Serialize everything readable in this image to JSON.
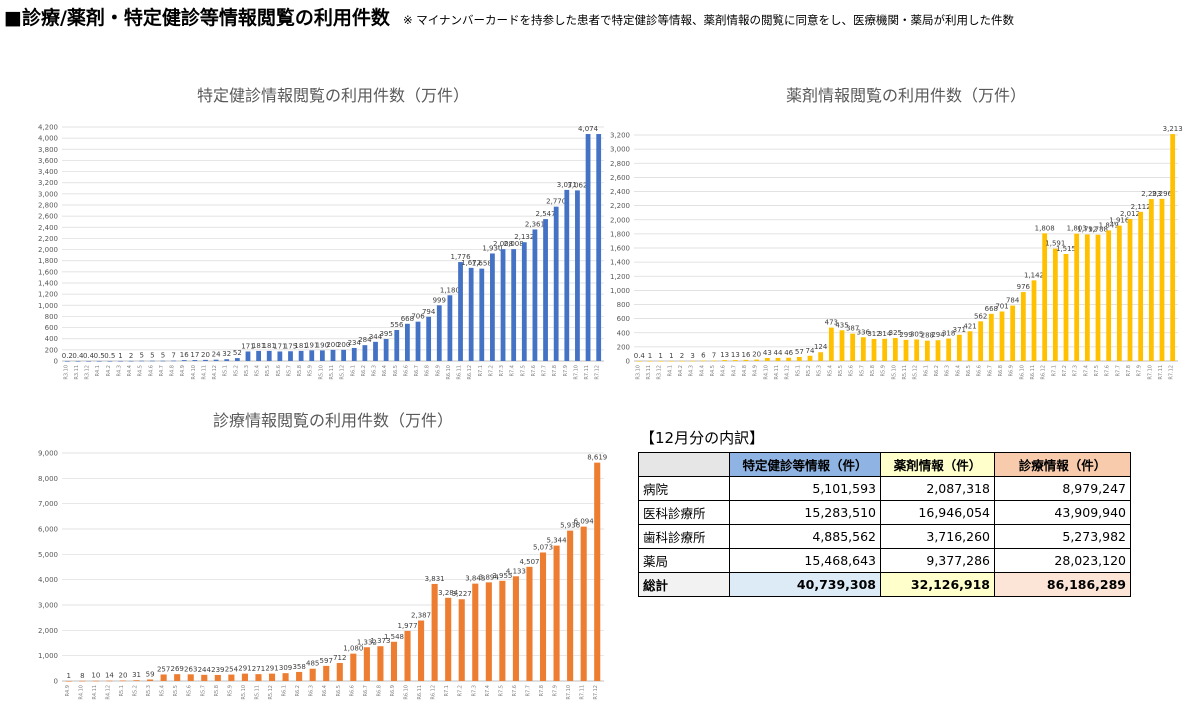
{
  "header": {
    "title": "■診療/薬剤・特定健診等情報閲覧の利用件数",
    "note": "※ マイナンバーカードを持参した患者で特定健診等情報、薬剤情報の閲覧に同意をし、医療機関・薬局が利用した件数"
  },
  "colors": {
    "kenshin": "#4472c4",
    "yakuzai": "#ffc000",
    "shinryo": "#ed7d31"
  },
  "chart_data": [
    {
      "type": "bar",
      "title": "特定健診情報閲覧の利用件数（万件）",
      "ylim": [
        0,
        4200
      ],
      "ytick_step": 200,
      "grid": true,
      "categories": [
        "R3.10",
        "R3.11",
        "R3.12",
        "R4.1",
        "R4.2",
        "R4.3",
        "R4.4",
        "R4.5",
        "R4.6",
        "R4.7",
        "R4.8",
        "R4.9",
        "R4.10",
        "R4.11",
        "R4.12",
        "R5.1",
        "R5.2",
        "R5.3",
        "R5.4",
        "R5.5",
        "R5.6",
        "R5.7",
        "R5.8",
        "R5.9",
        "R5.10",
        "R5.11",
        "R5.12",
        "R6.1",
        "R6.2",
        "R6.3",
        "R6.4",
        "R6.5",
        "R6.6",
        "R6.7",
        "R6.8",
        "R6.9",
        "R6.10",
        "R6.11",
        "R6.12",
        "R7.1",
        "R7.2",
        "R7.3",
        "R7.4",
        "R7.5",
        "R7.6",
        "R7.7",
        "R7.8",
        "R7.9",
        "R7.10",
        "R7.11",
        "R7.12"
      ],
      "values": [
        0.2,
        0.4,
        0.4,
        0.5,
        0.5,
        1,
        2,
        5,
        5,
        5,
        7,
        16,
        17,
        20,
        24,
        32,
        52,
        171,
        181,
        181,
        171,
        175,
        181,
        191,
        190,
        200,
        200,
        234,
        284,
        344,
        395,
        556,
        668,
        706,
        794,
        999,
        1180,
        1776,
        1672,
        1658,
        1930,
        2008,
        2008,
        2132,
        2361,
        2547,
        2770,
        3071,
        3062,
        4074,
        4074
      ],
      "labels": [
        "0.2",
        "0.4",
        "0.4",
        "0.5",
        "0.5",
        "1",
        "2",
        "5",
        "5",
        "5",
        "7",
        "16",
        "17",
        "20",
        "24",
        "32",
        "52",
        "171",
        "181",
        "181",
        "171",
        "175",
        "181",
        "191",
        "190",
        "200",
        "200",
        "234",
        "284",
        "344",
        "395",
        "556",
        "668",
        "706",
        "794",
        "999",
        "1,180",
        "1,776",
        "1,672",
        "1,658",
        "1,930",
        "2,008",
        "2,008",
        "2,132",
        "2,361",
        "2,547",
        "2,770",
        "3,071",
        "3,062",
        "4,074",
        ""
      ]
    },
    {
      "type": "bar",
      "title": "薬剤情報閲覧の利用件数（万件）",
      "ylim": [
        0,
        3200
      ],
      "ytick_step": 200,
      "grid": true,
      "categories": [
        "R3.10",
        "R3.11",
        "R3.12",
        "R4.1",
        "R4.2",
        "R4.3",
        "R4.4",
        "R4.5",
        "R4.6",
        "R4.7",
        "R4.8",
        "R4.9",
        "R4.10",
        "R4.11",
        "R4.12",
        "R5.1",
        "R5.2",
        "R5.3",
        "R5.4",
        "R5.5",
        "R5.6",
        "R5.7",
        "R5.8",
        "R5.9",
        "R5.10",
        "R5.11",
        "R5.12",
        "R6.1",
        "R6.2",
        "R6.3",
        "R6.4",
        "R6.5",
        "R6.6",
        "R6.7",
        "R6.8",
        "R6.9",
        "R6.10",
        "R6.11",
        "R6.12",
        "R7.1",
        "R7.2",
        "R7.3",
        "R7.4",
        "R7.5",
        "R7.6",
        "R7.7",
        "R7.8",
        "R7.9",
        "R7.10",
        "R7.11",
        "R7.12"
      ],
      "values": [
        0.4,
        1,
        1,
        1,
        2,
        3,
        6,
        7,
        13,
        13,
        16,
        20,
        43,
        44,
        46,
        57,
        74,
        124,
        473,
        435,
        387,
        336,
        312,
        314,
        325,
        299,
        305,
        288,
        294,
        318,
        371,
        421,
        562,
        668,
        701,
        784,
        976,
        1142,
        1808,
        1591,
        1515,
        1803,
        1792,
        1788,
        1849,
        1916,
        2012,
        2112,
        2293,
        2296,
        3213
      ],
      "labels": [
        "0.4",
        "1",
        "1",
        "1",
        "2",
        "3",
        "6",
        "7",
        "13",
        "13",
        "16",
        "20",
        "43",
        "44",
        "46",
        "57",
        "74",
        "124",
        "473",
        "435",
        "387",
        "336",
        "312",
        "314",
        "325",
        "299",
        "305",
        "288",
        "294",
        "318",
        "371",
        "421",
        "562",
        "668",
        "701",
        "784",
        "976",
        "1,142",
        "1,808",
        "1,591",
        "1,515",
        "1,803",
        "1,792",
        "1,788",
        "1,849",
        "1,916",
        "2,012",
        "2,112",
        "2,293",
        "2,296",
        "3,213"
      ]
    },
    {
      "type": "bar",
      "title": "診療情報閲覧の利用件数（万件）",
      "ylim": [
        0,
        9000
      ],
      "ytick_step": 1000,
      "grid": true,
      "categories": [
        "R4.9",
        "R4.10",
        "R4.11",
        "R4.12",
        "R5.1",
        "R5.2",
        "R5.3",
        "R5.4",
        "R5.5",
        "R5.6",
        "R5.7",
        "R5.8",
        "R5.9",
        "R5.10",
        "R5.11",
        "R5.12",
        "R6.1",
        "R6.2",
        "R6.3",
        "R6.4",
        "R6.5",
        "R6.6",
        "R6.7",
        "R6.8",
        "R6.9",
        "R6.10",
        "R6.11",
        "R6.12",
        "R7.1",
        "R7.2",
        "R7.3",
        "R7.4",
        "R7.5",
        "R7.6",
        "R7.7",
        "R7.8",
        "R7.9",
        "R7.10",
        "R7.11",
        "R7.12"
      ],
      "values": [
        1,
        8,
        10,
        14,
        20,
        31,
        59,
        257,
        269,
        263,
        244,
        239,
        254,
        291,
        271,
        291,
        309,
        358,
        485,
        597,
        712,
        1080,
        1332,
        1373,
        1548,
        1977,
        2387,
        3831,
        3284,
        3227,
        3843,
        3894,
        3955,
        4133,
        4507,
        5073,
        5344,
        5936,
        6094,
        8619
      ],
      "labels": [
        "1",
        "8",
        "10",
        "14",
        "20",
        "31",
        "59",
        "257",
        "269",
        "263",
        "244",
        "239",
        "254",
        "291",
        "271",
        "291",
        "309",
        "358",
        "485",
        "597",
        "712",
        "1,080",
        "1,332",
        "1,373",
        "1,548",
        "1,977",
        "2,387",
        "3,831",
        "3,284",
        "3,227",
        "3,843",
        "3,894",
        "3,955",
        "4,133",
        "4,507",
        "5,073",
        "5,344",
        "5,936",
        "6,094",
        "8,619"
      ]
    }
  ],
  "breakdown": {
    "title": "【12月分の内訳】",
    "headers": [
      "",
      "特定健診等情報（件）",
      "薬剤情報（件）",
      "診療情報（件）"
    ],
    "rows": [
      {
        "label": "病院",
        "values": [
          "5,101,593",
          "2,087,318",
          "8,979,247"
        ]
      },
      {
        "label": "医科診療所",
        "values": [
          "15,283,510",
          "16,946,054",
          "43,909,940"
        ]
      },
      {
        "label": "歯科診療所",
        "values": [
          "4,885,562",
          "3,716,260",
          "5,273,982"
        ]
      },
      {
        "label": "薬局",
        "values": [
          "15,468,643",
          "9,377,286",
          "28,023,120"
        ]
      }
    ],
    "total": {
      "label": "総計",
      "values": [
        "40,739,308",
        "32,126,918",
        "86,186,289"
      ]
    }
  }
}
